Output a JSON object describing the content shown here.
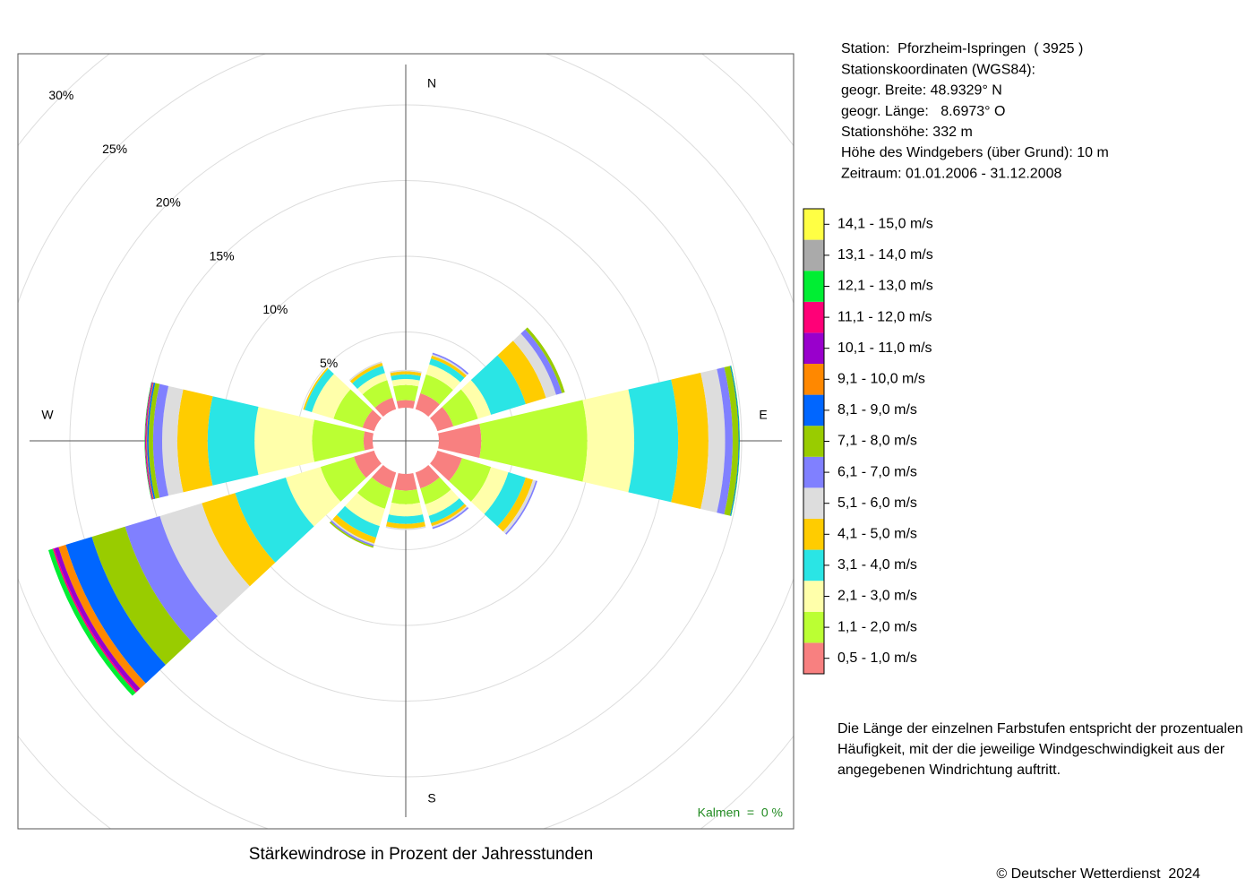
{
  "chart_data": {
    "type": "windrose",
    "title": "Stärkewindrose in Prozent der Jahresstunden",
    "categories": [
      "N",
      null,
      null,
      "E",
      null,
      null,
      "S",
      null,
      null,
      "W",
      null,
      null
    ],
    "rlim": [
      0,
      30
    ],
    "rticks": [
      {
        "value": 5,
        "label": "5%"
      },
      {
        "value": 10,
        "label": "10%"
      },
      {
        "value": 15,
        "label": "15%"
      },
      {
        "value": 20,
        "label": "20%"
      },
      {
        "value": 25,
        "label": "25%"
      },
      {
        "value": 30,
        "label": "30%"
      }
    ],
    "grid": true,
    "calm_label": "Kalmen  =  0 %",
    "series": [
      {
        "name": "0,5 - 1,0 m/s",
        "color": "#f88080",
        "values": [
          0.5,
          1.1,
          1.1,
          2.8,
          1.7,
          1.1,
          1.1,
          1.1,
          1.4,
          0.6,
          0.8,
          0.8
        ]
      },
      {
        "name": "1,1 - 2,0 m/s",
        "color": "#bbff33",
        "values": [
          1.0,
          1.3,
          1.7,
          7.0,
          2.0,
          1.1,
          0.9,
          1.4,
          2.3,
          3.4,
          2.0,
          1.2
        ]
      },
      {
        "name": "2,1 - 3,0 m/s",
        "color": "#ffffaa",
        "values": [
          0.4,
          0.7,
          0.9,
          3.1,
          1.2,
          0.8,
          0.8,
          1.2,
          2.4,
          3.8,
          1.5,
          0.5
        ]
      },
      {
        "name": "3,1 - 4,0 m/s",
        "color": "#2ae5e5",
        "values": [
          0.3,
          0.4,
          2.4,
          2.9,
          1.2,
          0.5,
          0.5,
          0.8,
          3.5,
          3.1,
          0.5,
          0.5
        ]
      },
      {
        "name": "4,1 - 5,0 m/s",
        "color": "#ffcc00",
        "values": [
          0.2,
          0.2,
          1.4,
          2.0,
          0.5,
          0.2,
          0.3,
          0.4,
          2.3,
          2.0,
          0.1,
          0.2
        ]
      },
      {
        "name": "5,1 - 6,0 m/s",
        "color": "#dddddd",
        "values": [
          0.1,
          0.1,
          0.7,
          1.1,
          0.2,
          0.1,
          0.1,
          0.1,
          2.9,
          1.0,
          0,
          0.1
        ]
      },
      {
        "name": "6,1 - 7,0 m/s",
        "color": "#8080ff",
        "values": [
          0,
          0.1,
          0.4,
          0.5,
          0.1,
          0.1,
          0,
          0.1,
          2.4,
          0.6,
          0,
          0
        ]
      },
      {
        "name": "7,1 - 8,0 m/s",
        "color": "#99cc00",
        "values": [
          0,
          0,
          0.2,
          0.4,
          0,
          0,
          0,
          0.1,
          2.3,
          0.3,
          0,
          0
        ]
      },
      {
        "name": "8,1 - 9,0 m/s",
        "color": "#0066ff",
        "values": [
          0,
          0,
          0,
          0.05,
          0,
          0,
          0,
          0,
          1.8,
          0.1,
          0,
          0
        ]
      },
      {
        "name": "9,1 - 10,0 m/s",
        "color": "#ff8800",
        "values": [
          0,
          0,
          0,
          0,
          0,
          0,
          0,
          0,
          0.5,
          0.05,
          0,
          0
        ]
      },
      {
        "name": "10,1 - 11,0 m/s",
        "color": "#9900cc",
        "values": [
          0,
          0,
          0,
          0,
          0,
          0,
          0,
          0,
          0.3,
          0.05,
          0,
          0
        ]
      },
      {
        "name": "11,1 - 12,0 m/s",
        "color": "#ff0077",
        "values": [
          0,
          0,
          0,
          0,
          0,
          0,
          0,
          0,
          0.1,
          0.03,
          0,
          0
        ]
      },
      {
        "name": "12,1 - 13,0 m/s",
        "color": "#00ee33",
        "values": [
          0,
          0,
          0,
          0.03,
          0,
          0,
          0,
          0,
          0.3,
          0.03,
          0,
          0
        ]
      },
      {
        "name": "13,1 - 14,0 m/s",
        "color": "#aaaaaa",
        "values": [
          0,
          0,
          0,
          0,
          0,
          0,
          0,
          0,
          0,
          0,
          0,
          0
        ]
      },
      {
        "name": "14,1 - 15,0 m/s",
        "color": "#ffff44",
        "values": [
          0,
          0,
          0,
          0,
          0,
          0,
          0,
          0,
          0,
          0,
          0,
          0
        ]
      }
    ]
  },
  "station_info": [
    "Station:  Pforzheim-Ispringen  ( 3925 )",
    "Stationskoordinaten (WGS84):",
    "geogr. Breite: 48.9329° N",
    "geogr. Länge:   8.6973° O",
    "Stationshöhe: 332 m",
    "Höhe des Windgebers (über Grund): 10 m",
    "Zeitraum: 01.01.2006 - 31.12.2008"
  ],
  "description": [
    "Die Länge der einzelnen Farbstufen entspricht der prozentualen",
    "Häufigkeit, mit der die jeweilige Windgeschwindigkeit aus der",
    "angegebenen Windrichtung auftritt."
  ],
  "copyright": "© Deutscher Wetterdienst  2024"
}
